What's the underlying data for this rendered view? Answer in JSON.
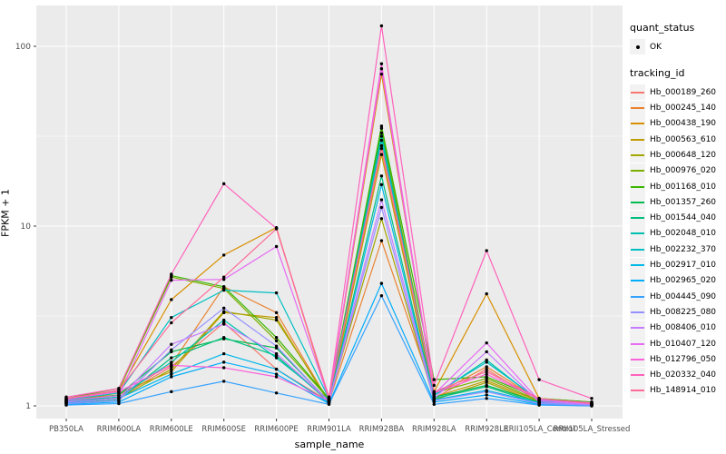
{
  "y_axis": {
    "title": "FPKM + 1",
    "tick_labels": [
      "100",
      "10",
      "1"
    ]
  },
  "x_axis": {
    "title": "sample_name"
  },
  "legend": {
    "quant_status": {
      "title": "quant_status",
      "items": [
        {
          "label": "OK",
          "symbol": "point"
        }
      ]
    },
    "tracking_id": {
      "title": "tracking_id"
    }
  },
  "colors": {
    "panel_bg": "#EBEBEB",
    "grid": "#FFFFFF",
    "tick_text": "#4D4D4D",
    "tick_mark": "#333333",
    "point": "#000000",
    "legend_key_bg": "#F2F2F2"
  },
  "chart_data": {
    "type": "line",
    "title": "",
    "xlabel": "sample_name",
    "ylabel": "FPKM + 1",
    "yscale": "log10",
    "ylim": [
      1,
      200
    ],
    "yticks": [
      1,
      10,
      100
    ],
    "yticks_minor": [
      3.162,
      31.62
    ],
    "grid": true,
    "legend_position": "right",
    "point_marker": "black dot (quant_status = OK)",
    "categories": [
      "PB350LA",
      "RRIM600LA",
      "RRIM600LE",
      "RRIM600SE",
      "RRIM600PE",
      "RRIM901LA",
      "RRIM928BA",
      "RRIM928LA",
      "RRIM928LE",
      "RRII105LA_Control",
      "RRII105LA_Stressed"
    ],
    "series": [
      {
        "name": "Hb_000189_260",
        "color": "#F8766D",
        "values": [
          1.05,
          1.12,
          1.65,
          2.9,
          1.6,
          1.06,
          27.0,
          1.1,
          1.6,
          1.05,
          1.02
        ]
      },
      {
        "name": "Hb_000245_140",
        "color": "#EA8331",
        "values": [
          1.08,
          1.15,
          1.7,
          4.6,
          3.3,
          1.05,
          8.3,
          1.15,
          1.65,
          1.08,
          1.03
        ]
      },
      {
        "name": "Hb_000438_190",
        "color": "#D89000",
        "values": [
          1.1,
          1.2,
          3.9,
          6.9,
          9.8,
          1.08,
          70.0,
          1.2,
          4.2,
          1.1,
          1.05
        ]
      },
      {
        "name": "Hb_000563_610",
        "color": "#C09B00",
        "values": [
          1.06,
          1.18,
          1.55,
          3.3,
          3.1,
          1.04,
          25.0,
          1.12,
          1.38,
          1.06,
          1.02
        ]
      },
      {
        "name": "Hb_000648_120",
        "color": "#A3A500",
        "values": [
          1.04,
          1.1,
          1.6,
          3.35,
          3.0,
          1.07,
          11.0,
          1.08,
          1.35,
          1.04,
          1.01
        ]
      },
      {
        "name": "Hb_000976_020",
        "color": "#7CAE00",
        "values": [
          1.07,
          1.22,
          5.2,
          4.5,
          2.3,
          1.09,
          35.0,
          1.18,
          1.42,
          1.07,
          1.03
        ]
      },
      {
        "name": "Hb_001168_010",
        "color": "#39B600",
        "values": [
          1.1,
          1.25,
          5.3,
          4.6,
          2.4,
          1.1,
          36.0,
          1.4,
          1.45,
          1.1,
          1.05
        ]
      },
      {
        "name": "Hb_001357_260",
        "color": "#00BB4E",
        "values": [
          1.05,
          1.15,
          2.0,
          2.36,
          2.1,
          1.06,
          33.0,
          1.12,
          1.3,
          1.05,
          1.02
        ]
      },
      {
        "name": "Hb_001544_040",
        "color": "#00BF7D",
        "values": [
          1.03,
          1.08,
          1.85,
          2.4,
          1.9,
          1.05,
          19.0,
          1.1,
          1.28,
          1.03,
          1.01
        ]
      },
      {
        "name": "Hb_002048_010",
        "color": "#00C0AF",
        "values": [
          1.06,
          1.12,
          1.75,
          3.0,
          1.85,
          1.08,
          30.0,
          1.14,
          1.8,
          1.06,
          1.02
        ]
      },
      {
        "name": "Hb_002232_370",
        "color": "#00BFC4",
        "values": [
          1.08,
          1.18,
          3.1,
          4.4,
          4.25,
          1.1,
          31.6,
          1.16,
          1.75,
          1.08,
          1.04
        ]
      },
      {
        "name": "Hb_002917_010",
        "color": "#00B8E7",
        "values": [
          1.04,
          1.1,
          1.5,
          1.95,
          1.6,
          1.04,
          17.0,
          1.08,
          1.22,
          1.04,
          1.01
        ]
      },
      {
        "name": "Hb_002965_020",
        "color": "#00ACFC",
        "values": [
          1.02,
          1.05,
          1.45,
          1.75,
          1.5,
          1.03,
          4.8,
          1.05,
          1.15,
          1.02,
          1.0
        ]
      },
      {
        "name": "Hb_004445_090",
        "color": "#35A2FF",
        "values": [
          1.01,
          1.03,
          1.2,
          1.37,
          1.18,
          1.02,
          4.1,
          1.02,
          1.1,
          1.01,
          1.0
        ]
      },
      {
        "name": "Hb_008225_080",
        "color": "#9590FF",
        "values": [
          1.03,
          1.07,
          2.05,
          3.5,
          2.15,
          1.05,
          12.7,
          1.07,
          1.2,
          1.03,
          1.01
        ]
      },
      {
        "name": "Hb_008406_010",
        "color": "#C77CFF",
        "values": [
          1.05,
          1.1,
          2.2,
          2.85,
          1.95,
          1.06,
          14.0,
          1.1,
          2.0,
          1.05,
          1.02
        ]
      },
      {
        "name": "Hb_010407_120",
        "color": "#E76BF3",
        "values": [
          1.07,
          1.14,
          5.0,
          5.05,
          7.7,
          1.09,
          75.0,
          1.16,
          2.24,
          1.07,
          1.03
        ]
      },
      {
        "name": "Hb_012796_050",
        "color": "#FA62DB",
        "values": [
          1.09,
          1.2,
          1.68,
          1.63,
          1.45,
          1.07,
          80.0,
          1.18,
          1.5,
          1.09,
          1.04
        ]
      },
      {
        "name": "Hb_020332_040",
        "color": "#FF62BC",
        "values": [
          1.12,
          1.25,
          5.4,
          17.2,
          9.7,
          1.12,
          130.0,
          1.3,
          7.3,
          1.4,
          1.1
        ]
      },
      {
        "name": "Hb_148914_010",
        "color": "#FF6A98",
        "values": [
          1.1,
          1.22,
          2.9,
          5.2,
          9.66,
          1.11,
          28.0,
          1.2,
          1.55,
          1.1,
          1.03
        ]
      }
    ]
  }
}
